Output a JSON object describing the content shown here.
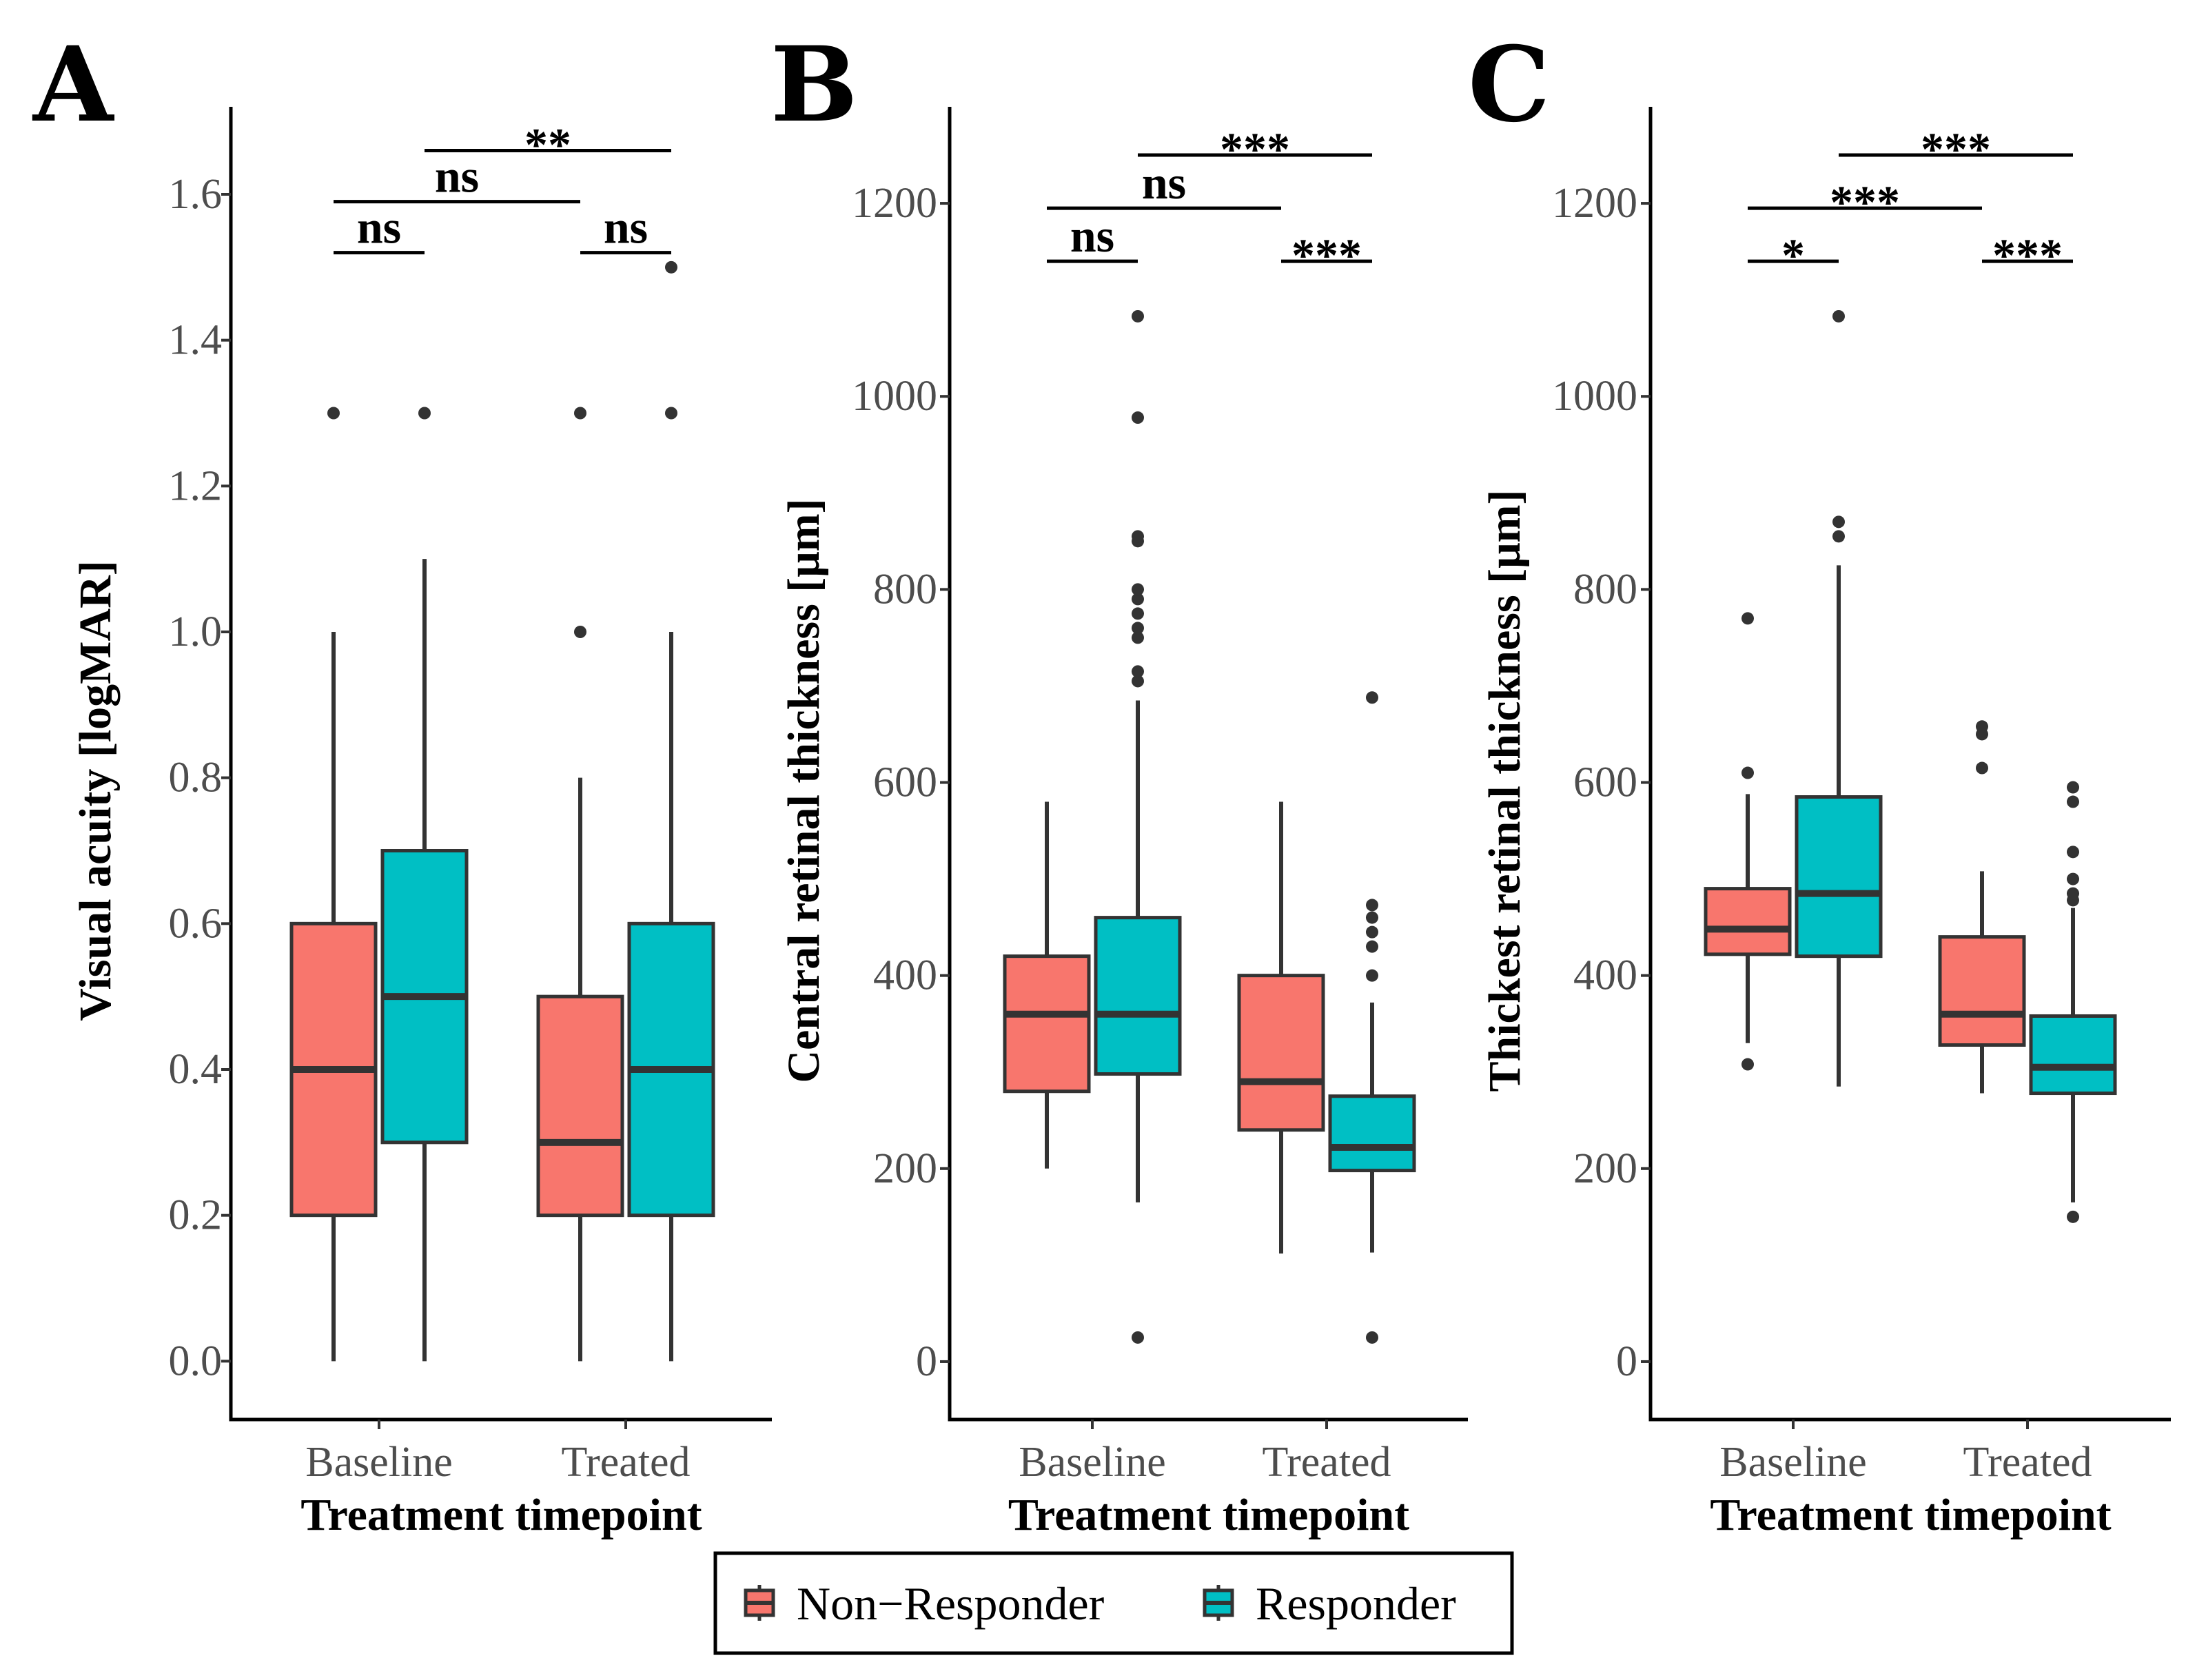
{
  "legend": {
    "items": [
      {
        "label": "Non−Responder",
        "color": "#F8766D"
      },
      {
        "label": "Responder",
        "color": "#00BFC4"
      }
    ]
  },
  "chart_data": [
    {
      "type": "boxplot",
      "panel": "A",
      "xlabel": "Treatment timepoint",
      "ylabel": "Visual acuity [logMAR]",
      "categories": [
        "Baseline",
        "Treated"
      ],
      "ylim": [
        -0.08,
        1.72
      ],
      "yticks": [
        0.0,
        0.2,
        0.4,
        0.6,
        0.8,
        1.0,
        1.2,
        1.4,
        1.6
      ],
      "ytick_labels": [
        "0.0",
        "0.2",
        "0.4",
        "0.6",
        "0.8",
        "1.0",
        "1.2",
        "1.4",
        "1.6"
      ],
      "series": [
        {
          "name": "Non−Responder",
          "color": "#F8766D",
          "boxes": [
            {
              "min": 0.0,
              "q1": 0.2,
              "median": 0.4,
              "q3": 0.6,
              "max": 1.0,
              "outliers": [
                1.3
              ]
            },
            {
              "min": 0.0,
              "q1": 0.2,
              "median": 0.3,
              "q3": 0.5,
              "max": 0.8,
              "outliers": [
                1.0,
                1.3
              ]
            }
          ]
        },
        {
          "name": "Responder",
          "color": "#00BFC4",
          "boxes": [
            {
              "min": 0.0,
              "q1": 0.3,
              "median": 0.5,
              "q3": 0.7,
              "max": 1.1,
              "outliers": [
                1.3
              ]
            },
            {
              "min": 0.0,
              "q1": 0.2,
              "median": 0.4,
              "q3": 0.6,
              "max": 1.0,
              "outliers": [
                1.3,
                1.5
              ]
            }
          ]
        }
      ],
      "annotations": [
        {
          "label": "ns",
          "from": [
            0,
            0
          ],
          "to": [
            0,
            1
          ],
          "y": 1.52
        },
        {
          "label": "ns",
          "from": [
            1,
            0
          ],
          "to": [
            1,
            1
          ],
          "y": 1.52
        },
        {
          "label": "ns",
          "from": [
            0,
            0
          ],
          "to": [
            1,
            0
          ],
          "y": 1.59
        },
        {
          "label": "**",
          "from": [
            0,
            1
          ],
          "to": [
            1,
            1
          ],
          "y": 1.66
        }
      ]
    },
    {
      "type": "boxplot",
      "panel": "B",
      "xlabel": "Treatment timepoint",
      "ylabel": "Central retinal thickness [μm]",
      "categories": [
        "Baseline",
        "Treated"
      ],
      "ylim": [
        -60,
        1300
      ],
      "yticks": [
        0,
        200,
        400,
        600,
        800,
        1000,
        1200
      ],
      "ytick_labels": [
        "0",
        "200",
        "400",
        "600",
        "800",
        "1000",
        "1200"
      ],
      "series": [
        {
          "name": "Non−Responder",
          "color": "#F8766D",
          "boxes": [
            {
              "min": 200,
              "q1": 280,
              "median": 360,
              "q3": 420,
              "max": 580,
              "outliers": []
            },
            {
              "min": 112,
              "q1": 240,
              "median": 290,
              "q3": 400,
              "max": 580,
              "outliers": []
            }
          ]
        },
        {
          "name": "Responder",
          "color": "#00BFC4",
          "boxes": [
            {
              "min": 165,
              "q1": 298,
              "median": 360,
              "q3": 460,
              "max": 685,
              "outliers": [
                25,
                705,
                715,
                750,
                760,
                775,
                790,
                800,
                850,
                855,
                978,
                1083
              ]
            },
            {
              "min": 113,
              "q1": 198,
              "median": 222,
              "q3": 275,
              "max": 372,
              "outliers": [
                25,
                400,
                430,
                445,
                460,
                473,
                688
              ]
            }
          ]
        }
      ],
      "annotations": [
        {
          "label": "ns",
          "from": [
            0,
            0
          ],
          "to": [
            0,
            1
          ],
          "y": 1140
        },
        {
          "label": "***",
          "from": [
            1,
            0
          ],
          "to": [
            1,
            1
          ],
          "y": 1140
        },
        {
          "label": "ns",
          "from": [
            0,
            0
          ],
          "to": [
            1,
            0
          ],
          "y": 1195
        },
        {
          "label": "***",
          "from": [
            0,
            1
          ],
          "to": [
            1,
            1
          ],
          "y": 1250
        }
      ]
    },
    {
      "type": "boxplot",
      "panel": "C",
      "xlabel": "Treatment timepoint",
      "ylabel": "Thickest retinal thickness [μm]",
      "categories": [
        "Baseline",
        "Treated"
      ],
      "ylim": [
        -60,
        1300
      ],
      "yticks": [
        0,
        200,
        400,
        600,
        800,
        1000,
        1200
      ],
      "ytick_labels": [
        "0",
        "200",
        "400",
        "600",
        "800",
        "1000",
        "1200"
      ],
      "series": [
        {
          "name": "Non−Responder",
          "color": "#F8766D",
          "boxes": [
            {
              "min": 330,
              "q1": 422,
              "median": 448,
              "q3": 490,
              "max": 588,
              "outliers": [
                308,
                610,
                770
              ]
            },
            {
              "min": 278,
              "q1": 328,
              "median": 360,
              "q3": 440,
              "max": 508,
              "outliers": [
                615,
                650,
                658
              ]
            }
          ]
        },
        {
          "name": "Responder",
          "color": "#00BFC4",
          "boxes": [
            {
              "min": 285,
              "q1": 420,
              "median": 485,
              "q3": 585,
              "max": 825,
              "outliers": [
                855,
                870,
                1083
              ]
            },
            {
              "min": 165,
              "q1": 278,
              "median": 305,
              "q3": 358,
              "max": 470,
              "outliers": [
                150,
                478,
                485,
                500,
                528,
                580,
                595
              ]
            }
          ]
        }
      ],
      "annotations": [
        {
          "label": "*",
          "from": [
            0,
            0
          ],
          "to": [
            0,
            1
          ],
          "y": 1140
        },
        {
          "label": "***",
          "from": [
            1,
            0
          ],
          "to": [
            1,
            1
          ],
          "y": 1140
        },
        {
          "label": "***",
          "from": [
            0,
            0
          ],
          "to": [
            1,
            0
          ],
          "y": 1195
        },
        {
          "label": "***",
          "from": [
            0,
            1
          ],
          "to": [
            1,
            1
          ],
          "y": 1250
        }
      ]
    }
  ]
}
